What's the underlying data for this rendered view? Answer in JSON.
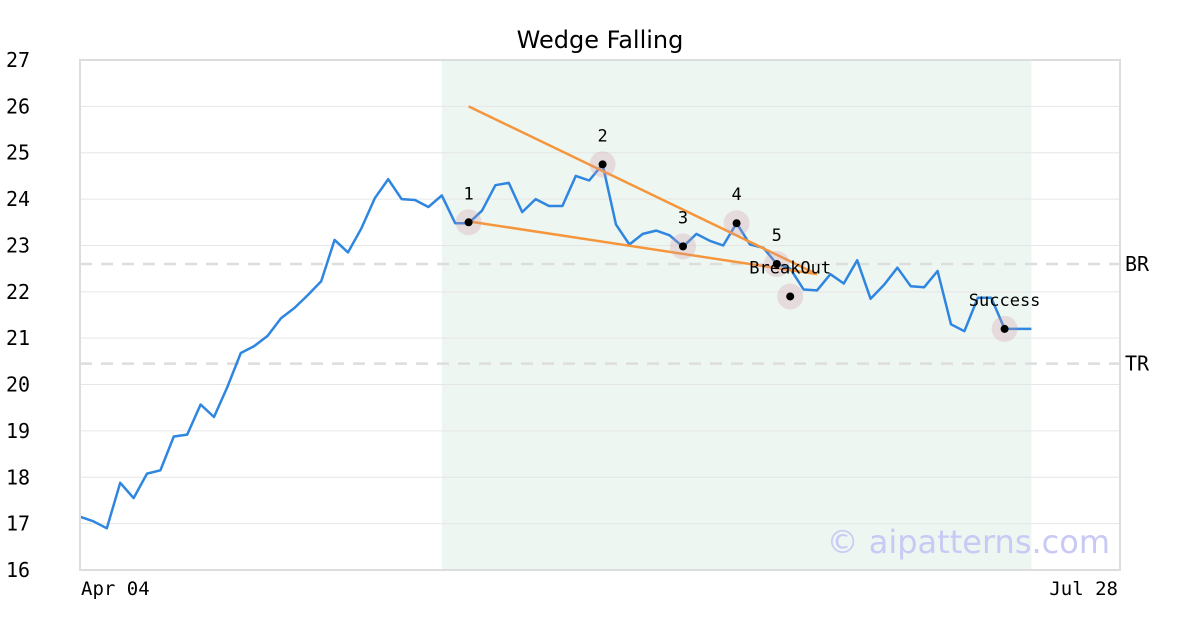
{
  "chart_data": {
    "type": "line",
    "title": "Wedge Falling",
    "xlabel": "",
    "ylabel": "",
    "ylim": [
      16,
      27
    ],
    "yticks": [
      16,
      17,
      18,
      19,
      20,
      21,
      22,
      23,
      24,
      25,
      26,
      27
    ],
    "x_tick_labels": [
      "Apr 04",
      "Jul 28"
    ],
    "grid": true,
    "series": [
      {
        "color": "#2e86e0",
        "values": [
          17.15,
          17.05,
          16.9,
          17.88,
          17.55,
          18.08,
          18.15,
          18.88,
          18.92,
          19.57,
          19.3,
          19.95,
          20.68,
          20.83,
          21.05,
          21.43,
          21.65,
          21.93,
          22.23,
          23.12,
          22.85,
          23.37,
          24.02,
          24.43,
          24.0,
          23.98,
          23.83,
          24.08,
          23.48,
          23.48,
          23.75,
          24.3,
          24.35,
          23.72,
          24.0,
          23.85,
          23.85,
          24.5,
          24.4,
          24.75,
          23.45,
          23.02,
          23.25,
          23.32,
          23.22,
          22.97,
          23.25,
          23.1,
          23.0,
          23.48,
          23.02,
          22.95,
          22.6,
          22.5,
          22.05,
          22.03,
          22.38,
          22.18,
          22.68,
          21.85,
          22.15,
          22.52,
          22.12,
          22.1,
          22.45,
          21.3,
          21.15,
          21.87,
          21.87,
          21.2,
          21.2,
          21.2
        ]
      }
    ],
    "pattern_lines": [
      {
        "color": "#f5963c",
        "points": [
          [
            29,
            26.0
          ],
          [
            55,
            22.38
          ]
        ]
      },
      {
        "color": "#f5963c",
        "points": [
          [
            29,
            23.52
          ],
          [
            55,
            22.38
          ]
        ]
      }
    ],
    "highlight_region": {
      "x_start": 27,
      "x_end": 71,
      "color": "#eef6f2"
    },
    "reference_lines": [
      {
        "label": "BR",
        "y": 22.6
      },
      {
        "label": "TR",
        "y": 20.45
      }
    ],
    "points": [
      {
        "label": "1",
        "x": 29,
        "y": 23.5
      },
      {
        "label": "2",
        "x": 39,
        "y": 24.75
      },
      {
        "label": "3",
        "x": 45,
        "y": 22.98
      },
      {
        "label": "4",
        "x": 49,
        "y": 23.48
      },
      {
        "label": "5",
        "x": 52,
        "y": 22.6
      },
      {
        "label": "BreakOut",
        "x": 53,
        "y": 21.9
      },
      {
        "label": "Success",
        "x": 69,
        "y": 21.2
      }
    ],
    "watermark": "© aipatterns.com"
  }
}
